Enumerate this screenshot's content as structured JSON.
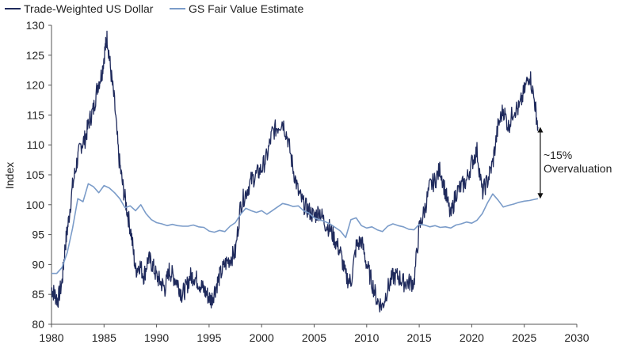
{
  "chart_data": {
    "type": "line",
    "title": "",
    "xlabel": "",
    "ylabel": "Index",
    "xlim": [
      1980,
      2030
    ],
    "ylim": [
      80,
      130
    ],
    "grid": false,
    "legend_position": "top-left",
    "x_ticks": [
      1980,
      1985,
      1990,
      1995,
      2000,
      2005,
      2010,
      2015,
      2020,
      2025,
      2030
    ],
    "y_ticks": [
      80,
      85,
      90,
      95,
      100,
      105,
      110,
      115,
      120,
      125,
      130
    ],
    "series": [
      {
        "name": "Trade-Weighted US Dollar",
        "color": "#1f2a5c",
        "x": [
          1980.0,
          1980.3,
          1980.6,
          1981.0,
          1981.3,
          1981.6,
          1982.0,
          1982.4,
          1982.8,
          1983.2,
          1983.6,
          1984.0,
          1984.4,
          1984.8,
          1985.1,
          1985.3,
          1985.6,
          1986.0,
          1986.4,
          1986.8,
          1987.2,
          1987.6,
          1988.0,
          1988.4,
          1988.8,
          1989.2,
          1989.6,
          1990.0,
          1990.4,
          1990.8,
          1991.2,
          1991.6,
          1992.0,
          1992.4,
          1992.8,
          1993.2,
          1993.6,
          1994.0,
          1994.4,
          1994.8,
          1995.2,
          1995.6,
          1996.0,
          1996.5,
          1997.0,
          1997.5,
          1998.0,
          1998.5,
          1999.0,
          1999.5,
          2000.0,
          2000.5,
          2001.0,
          2001.5,
          2002.0,
          2002.5,
          2003.0,
          2003.5,
          2004.0,
          2004.5,
          2005.0,
          2005.5,
          2006.0,
          2006.5,
          2007.0,
          2007.5,
          2008.0,
          2008.5,
          2009.0,
          2009.5,
          2010.0,
          2010.5,
          2011.0,
          2011.5,
          2012.0,
          2012.5,
          2013.0,
          2013.5,
          2014.0,
          2014.5,
          2015.0,
          2015.5,
          2016.0,
          2016.5,
          2017.0,
          2017.5,
          2018.0,
          2018.5,
          2019.0,
          2019.5,
          2020.0,
          2020.5,
          2021.0,
          2021.5,
          2022.0,
          2022.5,
          2023.0,
          2023.5,
          2024.0,
          2024.5,
          2025.0,
          2025.5,
          2026.0,
          2026.3
        ],
        "y": [
          86.0,
          85.0,
          84.0,
          87.0,
          93.0,
          97.0,
          103.0,
          107.0,
          110.0,
          111.0,
          114.0,
          116.0,
          120.0,
          122.0,
          126.0,
          128.0,
          123.0,
          117.0,
          108.0,
          103.0,
          99.0,
          95.0,
          89.0,
          90.0,
          88.0,
          91.0,
          90.0,
          88.0,
          87.0,
          86.0,
          89.0,
          88.0,
          87.0,
          85.0,
          86.0,
          88.0,
          88.0,
          87.0,
          86.0,
          85.0,
          84.0,
          86.0,
          88.0,
          90.0,
          91.0,
          92.0,
          100.0,
          102.0,
          104.0,
          105.0,
          106.0,
          108.0,
          112.0,
          113.0,
          114.0,
          111.0,
          106.0,
          102.0,
          100.0,
          99.0,
          98.0,
          99.0,
          97.0,
          96.0,
          94.0,
          92.0,
          88.0,
          87.0,
          93.0,
          94.0,
          90.0,
          87.0,
          84.0,
          83.0,
          86.0,
          88.0,
          88.0,
          87.0,
          87.0,
          87.0,
          96.0,
          99.0,
          103.0,
          104.0,
          106.0,
          102.0,
          98.0,
          102.0,
          103.0,
          104.0,
          107.0,
          109.0,
          102.0,
          104.0,
          107.0,
          113.0,
          116.0,
          113.0,
          116.0,
          116.0,
          119.0,
          122.0,
          117.0,
          113.0
        ],
        "bind_name": "Trade-Weighted US Dollar"
      },
      {
        "name": "GS Fair Value Estimate",
        "color": "#7b9cc9",
        "x": [
          1980.0,
          1980.5,
          1981.0,
          1981.5,
          1982.0,
          1982.5,
          1983.0,
          1983.5,
          1984.0,
          1984.5,
          1985.0,
          1985.5,
          1986.0,
          1986.5,
          1987.0,
          1987.5,
          1988.0,
          1988.5,
          1989.0,
          1989.5,
          1990.0,
          1990.5,
          1991.0,
          1991.5,
          1992.0,
          1992.5,
          1993.0,
          1993.5,
          1994.0,
          1994.5,
          1995.0,
          1995.5,
          1996.0,
          1996.5,
          1997.0,
          1997.5,
          1998.0,
          1998.5,
          1999.0,
          1999.5,
          2000.0,
          2000.5,
          2001.0,
          2001.5,
          2002.0,
          2002.5,
          2003.0,
          2003.5,
          2004.0,
          2004.5,
          2005.0,
          2005.5,
          2006.0,
          2006.5,
          2007.0,
          2007.5,
          2008.0,
          2008.5,
          2009.0,
          2009.5,
          2010.0,
          2010.5,
          2011.0,
          2011.5,
          2012.0,
          2012.5,
          2013.0,
          2013.5,
          2014.0,
          2014.5,
          2015.0,
          2015.5,
          2016.0,
          2016.5,
          2017.0,
          2017.5,
          2018.0,
          2018.5,
          2019.0,
          2019.5,
          2020.0,
          2020.5,
          2021.0,
          2021.5,
          2022.0,
          2022.5,
          2023.0,
          2023.5,
          2024.0,
          2024.5,
          2025.0,
          2025.5,
          2026.0,
          2026.3
        ],
        "y": [
          88.5,
          88.5,
          89.5,
          92.0,
          96.0,
          101.0,
          100.5,
          103.5,
          103.0,
          102.0,
          103.2,
          102.8,
          102.0,
          101.0,
          99.5,
          99.8,
          99.0,
          100.0,
          98.5,
          97.5,
          97.0,
          96.8,
          96.5,
          96.7,
          96.5,
          96.4,
          96.4,
          96.6,
          96.3,
          96.2,
          95.6,
          95.4,
          95.7,
          95.5,
          96.4,
          97.0,
          98.4,
          99.4,
          99.0,
          98.7,
          99.0,
          98.4,
          99.0,
          99.6,
          100.2,
          100.0,
          99.7,
          99.8,
          99.0,
          98.6,
          97.8,
          97.5,
          97.2,
          96.8,
          96.2,
          95.6,
          94.5,
          97.5,
          97.8,
          96.5,
          96.1,
          96.3,
          95.8,
          95.5,
          96.4,
          96.8,
          96.5,
          96.3,
          95.9,
          95.8,
          96.7,
          96.6,
          96.3,
          96.5,
          96.2,
          96.3,
          96.1,
          96.6,
          96.8,
          97.1,
          96.9,
          97.4,
          98.5,
          100.3,
          101.8,
          100.8,
          99.6,
          99.9,
          100.1,
          100.4,
          100.6,
          100.7,
          100.9,
          101.0
        ],
        "bind_name": "GS Fair Value Estimate"
      }
    ],
    "annotation": {
      "line1": "~15%",
      "line2": "Overvaluation",
      "from_value": 113,
      "to_value": 101,
      "at_x": 2026.3
    }
  }
}
